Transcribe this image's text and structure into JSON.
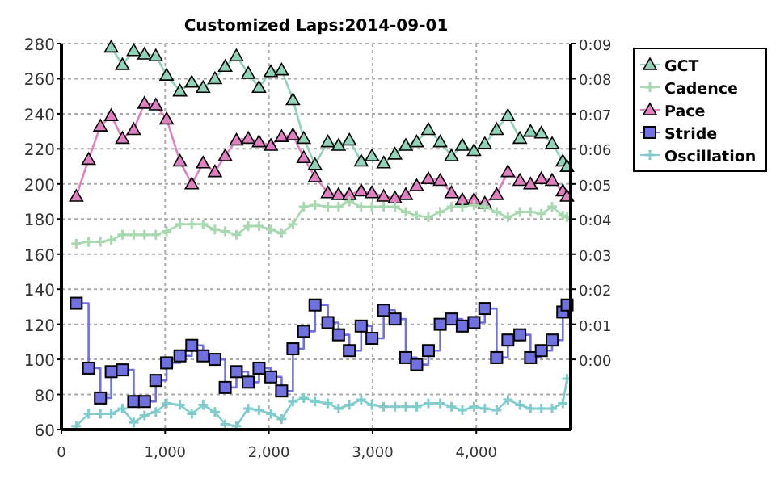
{
  "chart_data": {
    "type": "line",
    "title": "Customized Laps:2014-09-01",
    "x": [
      143,
      262,
      376,
      480,
      588,
      697,
      801,
      910,
      1014,
      1143,
      1257,
      1366,
      1480,
      1579,
      1687,
      1801,
      1905,
      2019,
      2123,
      2232,
      2336,
      2445,
      2569,
      2672,
      2776,
      2890,
      2994,
      3107,
      3216,
      3320,
      3425,
      3538,
      3652,
      3761,
      3865,
      3978,
      4082,
      4196,
      4305,
      4420,
      4523,
      4627,
      4731,
      4834,
      4875
    ],
    "xlim": [
      0,
      4910
    ],
    "xticks": [
      0,
      {
        "value": 1000,
        "label": "1,000"
      },
      {
        "value": 2000,
        "label": "2,000"
      },
      {
        "value": 3000,
        "label": "3,000"
      },
      {
        "value": 4000,
        "label": "4,000"
      }
    ],
    "ylim": [
      60,
      280
    ],
    "yticks": [
      60,
      80,
      100,
      120,
      140,
      160,
      180,
      200,
      220,
      240,
      260,
      280
    ],
    "y2lim": [
      -2,
      9
    ],
    "y2ticks": [
      {
        "value": 0,
        "label": "0:00"
      },
      {
        "value": 1,
        "label": "0:01"
      },
      {
        "value": 2,
        "label": "0:02"
      },
      {
        "value": 3,
        "label": "0:03"
      },
      {
        "value": 4,
        "label": "0:04"
      },
      {
        "value": 5,
        "label": "0:05"
      },
      {
        "value": 6,
        "label": "0:06"
      },
      {
        "value": 7,
        "label": "0:07"
      },
      {
        "value": 8,
        "label": "0:08"
      },
      {
        "value": 9,
        "label": "0:09"
      }
    ],
    "grid": true,
    "legend": "right",
    "series": [
      {
        "name": "GCT",
        "color": "#90d4b8",
        "marker": "triangle",
        "values": [
          null,
          null,
          null,
          278,
          268,
          276,
          274,
          273,
          262,
          253,
          258,
          255,
          260,
          267,
          273,
          263,
          255,
          264,
          265,
          248,
          226,
          211,
          224,
          222,
          225,
          213,
          216,
          212,
          217,
          222,
          224,
          231,
          224,
          216,
          222,
          219,
          223,
          231,
          239,
          226,
          230,
          229,
          223,
          213,
          210
        ]
      },
      {
        "name": "Cadence",
        "color": "#a8d8b0",
        "marker": "cross",
        "values": [
          166,
          167,
          167,
          168,
          171,
          171,
          171,
          171,
          173,
          177,
          177,
          177,
          174,
          173,
          171,
          176,
          176,
          174,
          172,
          177,
          187,
          188,
          187,
          187,
          190,
          187,
          187,
          187,
          187,
          184,
          182,
          181,
          184,
          187,
          187,
          188,
          187,
          184,
          181,
          184,
          184,
          183,
          187,
          182,
          181
        ]
      },
      {
        "name": "Pace",
        "color": "#e080c0",
        "marker": "triangle",
        "values": [
          193,
          214,
          233,
          239,
          226,
          231,
          246,
          245,
          237,
          213,
          200,
          212,
          207,
          216,
          225,
          226,
          224,
          222,
          227,
          228,
          215,
          204,
          195,
          194,
          194,
          196,
          195,
          193,
          192,
          194,
          199,
          203,
          202,
          195,
          191,
          191,
          189,
          194,
          207,
          202,
          200,
          203,
          202,
          196,
          193
        ]
      },
      {
        "name": "Stride",
        "type": "step",
        "color": "#7070e0",
        "marker": "square",
        "values": [
          132,
          95,
          78,
          93,
          94,
          76,
          76,
          88,
          98,
          102,
          108,
          102,
          100,
          84,
          93,
          87,
          95,
          90,
          82,
          106,
          116,
          131,
          121,
          114,
          105,
          119,
          112,
          128,
          123,
          101,
          97,
          105,
          120,
          123,
          119,
          121,
          129,
          101,
          111,
          114,
          101,
          105,
          111,
          127,
          131
        ]
      },
      {
        "name": "Oscillation",
        "color": "#80cccc",
        "marker": "cross",
        "values": [
          62,
          69,
          69,
          69,
          72,
          64,
          68,
          70,
          75,
          74,
          69,
          74,
          70,
          63,
          62,
          72,
          71,
          69,
          66,
          76,
          78,
          76,
          75,
          72,
          74,
          77,
          74,
          73,
          73,
          73,
          73,
          75,
          75,
          73,
          71,
          73,
          72,
          71,
          77,
          74,
          72,
          72,
          72,
          75,
          89
        ]
      }
    ]
  }
}
